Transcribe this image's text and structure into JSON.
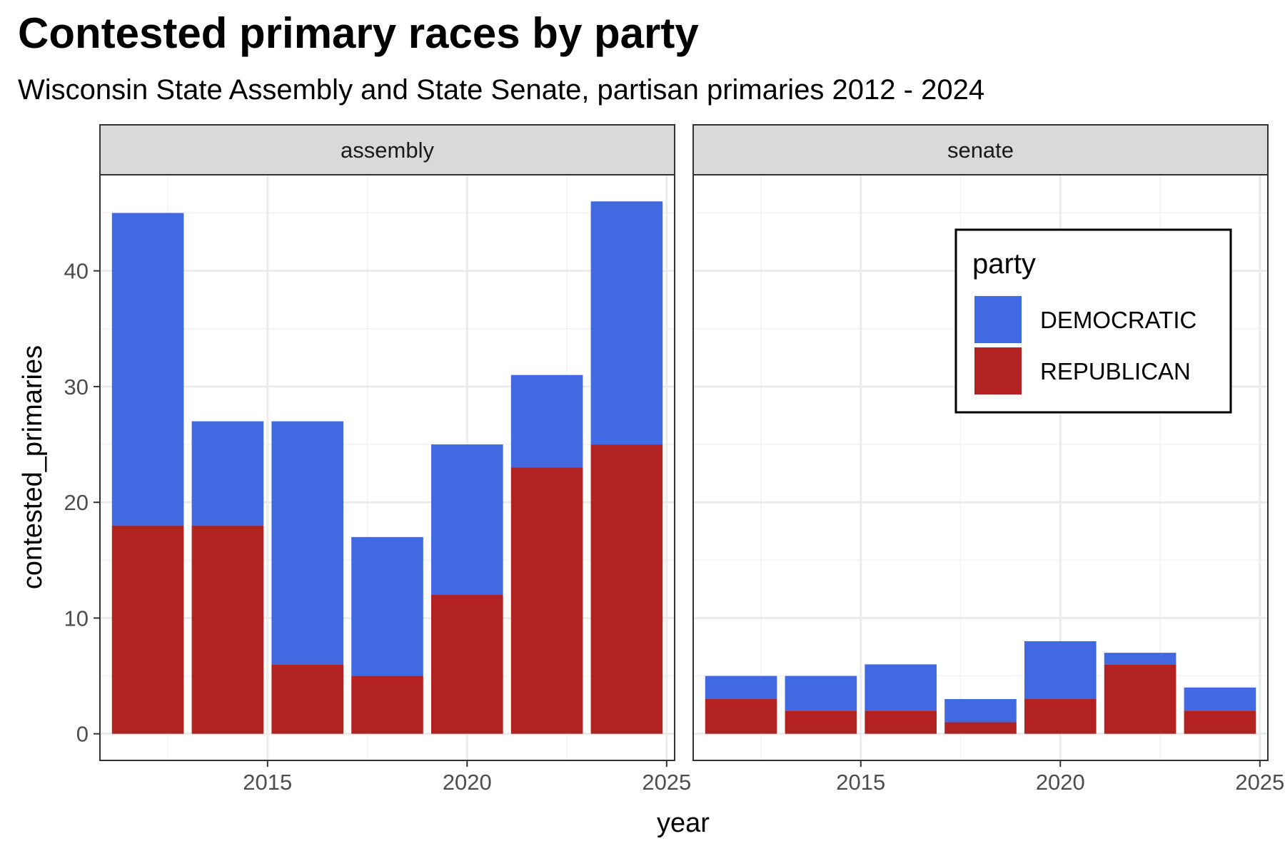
{
  "chart_data": {
    "type": "bar",
    "stacked": true,
    "title": "Contested primary races by party",
    "subtitle": "Wisconsin State Assembly and State Senate, partisan primaries 2012 - 2024",
    "xlabel": "year",
    "ylabel": "contested_primaries",
    "ylim": [
      -2.3,
      48.3
    ],
    "xlim": [
      2010.8,
      2025.2
    ],
    "y_ticks": [
      0,
      10,
      20,
      30,
      40
    ],
    "x_ticks": [
      2015,
      2020,
      2025
    ],
    "grid": true,
    "x": [
      2012,
      2014,
      2016,
      2018,
      2020,
      2022,
      2024
    ],
    "legend": {
      "title": "party",
      "placement": "inside top-right of senate panel",
      "entries": [
        "DEMOCRATIC",
        "REPUBLICAN"
      ]
    },
    "colors": {
      "DEMOCRATIC": "#4169E1",
      "REPUBLICAN": "#B22222"
    },
    "panels": [
      {
        "name": "assembly",
        "series": [
          {
            "name": "REPUBLICAN",
            "values": [
              18,
              18,
              6,
              5,
              12,
              23,
              25
            ]
          },
          {
            "name": "DEMOCRATIC",
            "values": [
              27,
              9,
              21,
              12,
              13,
              8,
              21
            ]
          }
        ]
      },
      {
        "name": "senate",
        "series": [
          {
            "name": "REPUBLICAN",
            "values": [
              3,
              2,
              2,
              1,
              3,
              6,
              2
            ]
          },
          {
            "name": "DEMOCRATIC",
            "values": [
              2,
              3,
              4,
              2,
              5,
              1,
              2
            ]
          }
        ]
      }
    ]
  }
}
